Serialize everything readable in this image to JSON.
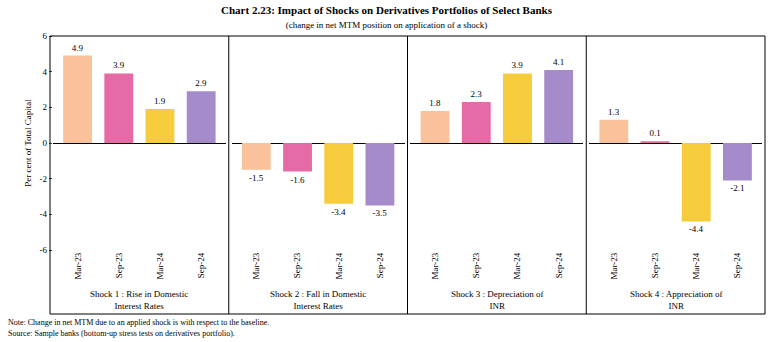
{
  "title": "Chart 2.23: Impact of Shocks on Derivatives Portfolios of Select Banks",
  "subtitle": "(change in net MTM position on application of a shock)",
  "note": "Note: Change in net MTM due to an applied shock is with respect to the baseline.",
  "source": "Source: Sample banks (bottom-up stress tests on derivatives portfolio).",
  "chart_data": [
    {
      "type": "bar",
      "title": "Shock 1 : Rise in Domestic Interest Rates",
      "ylabel": "Per cent of Total Capital",
      "categories": [
        "Mar-23",
        "Sep-23",
        "Mar-24",
        "Sep-24"
      ],
      "values": [
        4.9,
        3.9,
        1.9,
        2.9
      ],
      "colors": [
        "#F9C29A",
        "#E56AA6",
        "#F6CB3C",
        "#A68BCB"
      ],
      "ylim": [
        -6,
        6
      ],
      "yticks": [
        -6,
        -4,
        -2,
        0,
        2,
        4,
        6
      ],
      "grid": false,
      "data_labels": true
    },
    {
      "type": "bar",
      "title": "Shock 2 : Fall in Domestic Interest Rates",
      "categories": [
        "Mar-23",
        "Sep-23",
        "Mar-24",
        "Sep-24"
      ],
      "values": [
        -1.5,
        -1.6,
        -3.4,
        -3.5
      ],
      "colors": [
        "#F9C29A",
        "#E56AA6",
        "#F6CB3C",
        "#A68BCB"
      ],
      "ylim": [
        -6,
        6
      ],
      "yticks": [
        -6,
        -4,
        -2,
        0,
        2,
        4,
        6
      ],
      "grid": false,
      "data_labels": true
    },
    {
      "type": "bar",
      "title": "Shock 3 : Depreciation of INR",
      "categories": [
        "Mar-23",
        "Sep-23",
        "Mar-24",
        "Sep-24"
      ],
      "values": [
        1.8,
        2.3,
        3.9,
        4.1
      ],
      "colors": [
        "#F9C29A",
        "#E56AA6",
        "#F6CB3C",
        "#A68BCB"
      ],
      "ylim": [
        -6,
        6
      ],
      "yticks": [
        -6,
        -4,
        -2,
        0,
        2,
        4,
        6
      ],
      "grid": false,
      "data_labels": true
    },
    {
      "type": "bar",
      "title": "Shock 4 : Appreciation of INR",
      "categories": [
        "Mar-23",
        "Sep-23",
        "Mar-24",
        "Sep-24"
      ],
      "values": [
        1.3,
        0.1,
        -4.4,
        -2.1
      ],
      "colors": [
        "#F9C29A",
        "#E56AA6",
        "#F6CB3C",
        "#A68BCB"
      ],
      "ylim": [
        -6,
        6
      ],
      "yticks": [
        -6,
        -4,
        -2,
        0,
        2,
        4,
        6
      ],
      "grid": false,
      "data_labels": true
    }
  ]
}
